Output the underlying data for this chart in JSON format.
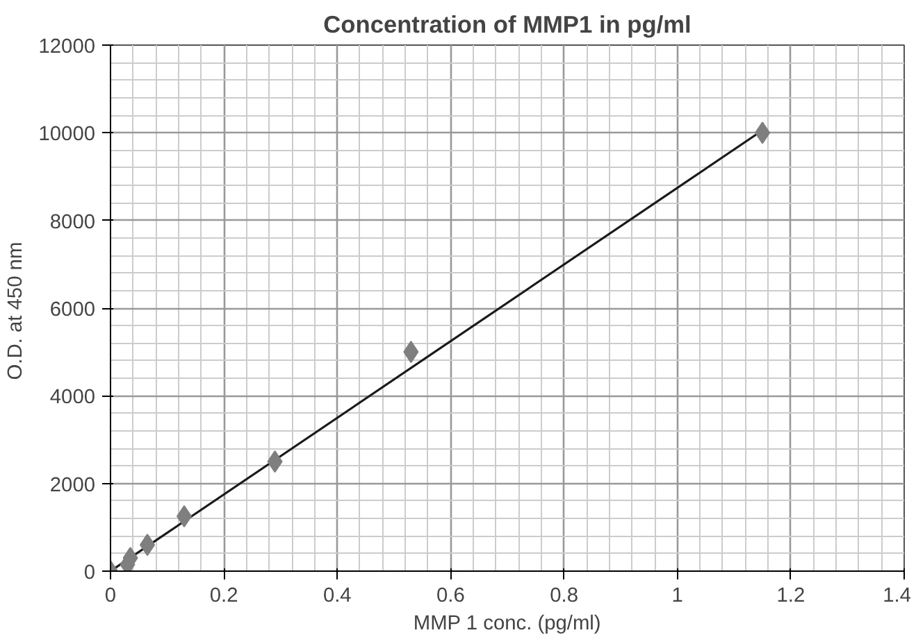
{
  "chart_data": {
    "type": "scatter",
    "title": "Concentration of MMP1 in pg/ml",
    "xlabel": "MMP 1 conc. (pg/ml)",
    "ylabel": "O.D. at 450  nm",
    "xlim": [
      0,
      1.4
    ],
    "xticks": [
      0,
      0.2,
      0.4,
      0.6,
      0.8,
      1,
      1.2,
      1.4
    ],
    "ylim": [
      0,
      12000
    ],
    "yticks": [
      0,
      2000,
      4000,
      6000,
      8000,
      10000,
      12000
    ],
    "grid": true,
    "series": [
      {
        "type": "line",
        "color": "#1a1a1a",
        "x": [
          0,
          1.155
        ],
        "values": [
          0,
          10100
        ],
        "line_style": "solid",
        "marker": "none"
      },
      {
        "color": "#7f7f7f",
        "marker": "diamond",
        "x": [
          0,
          0.03,
          0.035,
          0.065,
          0.13,
          0.29,
          0.53,
          1.15
        ],
        "values": [
          0,
          150,
          300,
          600,
          1250,
          2500,
          5000,
          10000
        ]
      }
    ]
  }
}
